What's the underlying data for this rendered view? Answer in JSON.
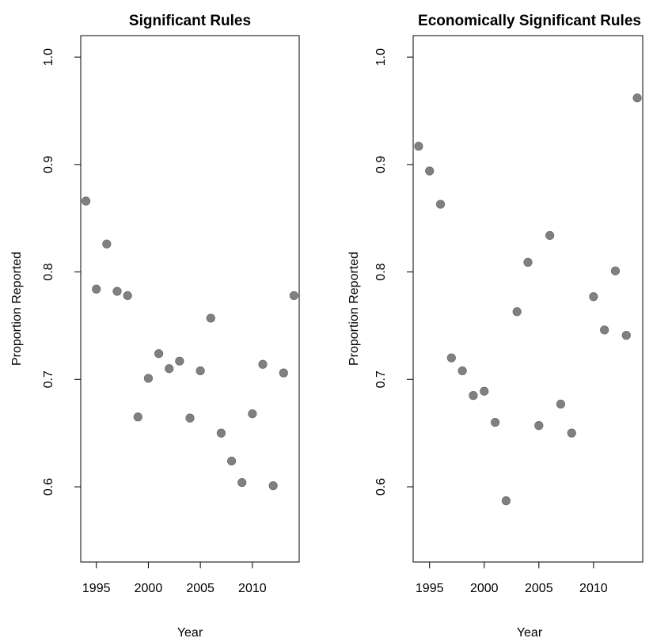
{
  "chart_data": [
    {
      "type": "scatter",
      "title": "Significant Rules",
      "xlabel": "Year",
      "ylabel": "Proportion Reported",
      "xlim": [
        1993.5,
        2014.5
      ],
      "ylim": [
        0.53,
        1.02
      ],
      "xticks": [
        1995,
        2000,
        2005,
        2010
      ],
      "yticks": [
        0.6,
        0.7,
        0.8,
        0.9,
        1.0
      ],
      "xtick_labels": [
        "1995",
        "2000",
        "2005",
        "2010"
      ],
      "ytick_labels": [
        "0.6",
        "0.7",
        "0.8",
        "0.9",
        "1.0"
      ],
      "grid": false,
      "point_color": "#808080",
      "x": [
        1994,
        1995,
        1996,
        1997,
        1998,
        1999,
        2000,
        2001,
        2002,
        2003,
        2004,
        2005,
        2006,
        2007,
        2008,
        2009,
        2010,
        2011,
        2012,
        2013,
        2014
      ],
      "y": [
        0.866,
        0.784,
        0.826,
        0.782,
        0.778,
        0.665,
        0.701,
        0.724,
        0.71,
        0.717,
        0.664,
        0.708,
        0.757,
        0.65,
        0.624,
        0.604,
        0.668,
        0.714,
        0.601,
        0.706,
        0.778
      ]
    },
    {
      "type": "scatter",
      "title": "Economically Significant Rules",
      "xlabel": "Year",
      "ylabel": "Proportion Reported",
      "xlim": [
        1993.5,
        2014.5
      ],
      "ylim": [
        0.53,
        1.02
      ],
      "xticks": [
        1995,
        2000,
        2005,
        2010
      ],
      "yticks": [
        0.6,
        0.7,
        0.8,
        0.9,
        1.0
      ],
      "xtick_labels": [
        "1995",
        "2000",
        "2005",
        "2010"
      ],
      "ytick_labels": [
        "0.6",
        "0.7",
        "0.8",
        "0.9",
        "1.0"
      ],
      "grid": false,
      "point_color": "#808080",
      "x": [
        1994,
        1995,
        1996,
        1997,
        1998,
        1999,
        2000,
        2001,
        2002,
        2003,
        2004,
        2005,
        2006,
        2007,
        2008,
        2010,
        2011,
        2012,
        2013,
        2014
      ],
      "y": [
        0.917,
        0.894,
        0.863,
        0.72,
        0.708,
        0.685,
        0.689,
        0.66,
        0.587,
        0.763,
        0.809,
        0.657,
        0.834,
        0.677,
        0.65,
        0.777,
        0.746,
        0.801,
        0.741,
        0.962
      ]
    }
  ]
}
